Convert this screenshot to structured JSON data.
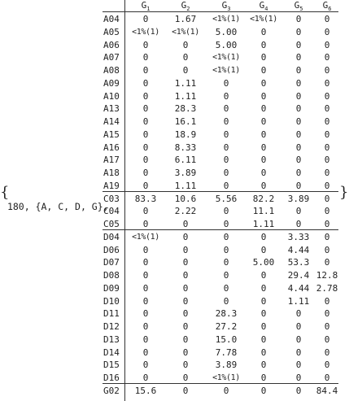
{
  "expression_prefix": "180, {A, C, D, G},",
  "brace_open": "{",
  "brace_close": "}",
  "headers": [
    "G1",
    "G2",
    "G3",
    "G4",
    "G5",
    "G6"
  ],
  "header_base": "G",
  "header_subs": [
    "1",
    "2",
    "3",
    "4",
    "5",
    "6"
  ],
  "groups": [
    {
      "rows": [
        {
          "label": "A04",
          "values": [
            "0",
            "1.67",
            "<1%(1)",
            "<1%(1)",
            "0",
            "0"
          ]
        },
        {
          "label": "A05",
          "values": [
            "<1%(1)",
            "<1%(1)",
            "5.00",
            "0",
            "0",
            "0"
          ]
        },
        {
          "label": "A06",
          "values": [
            "0",
            "0",
            "5.00",
            "0",
            "0",
            "0"
          ]
        },
        {
          "label": "A07",
          "values": [
            "0",
            "0",
            "<1%(1)",
            "0",
            "0",
            "0"
          ]
        },
        {
          "label": "A08",
          "values": [
            "0",
            "0",
            "<1%(1)",
            "0",
            "0",
            "0"
          ]
        },
        {
          "label": "A09",
          "values": [
            "0",
            "1.11",
            "0",
            "0",
            "0",
            "0"
          ]
        },
        {
          "label": "A10",
          "values": [
            "0",
            "1.11",
            "0",
            "0",
            "0",
            "0"
          ]
        },
        {
          "label": "A13",
          "values": [
            "0",
            "28.3",
            "0",
            "0",
            "0",
            "0"
          ]
        },
        {
          "label": "A14",
          "values": [
            "0",
            "16.1",
            "0",
            "0",
            "0",
            "0"
          ]
        },
        {
          "label": "A15",
          "values": [
            "0",
            "18.9",
            "0",
            "0",
            "0",
            "0"
          ]
        },
        {
          "label": "A16",
          "values": [
            "0",
            "8.33",
            "0",
            "0",
            "0",
            "0"
          ]
        },
        {
          "label": "A17",
          "values": [
            "0",
            "6.11",
            "0",
            "0",
            "0",
            "0"
          ]
        },
        {
          "label": "A18",
          "values": [
            "0",
            "3.89",
            "0",
            "0",
            "0",
            "0"
          ]
        },
        {
          "label": "A19",
          "values": [
            "0",
            "1.11",
            "0",
            "0",
            "0",
            "0"
          ]
        }
      ]
    },
    {
      "rows": [
        {
          "label": "C03",
          "values": [
            "83.3",
            "10.6",
            "5.56",
            "82.2",
            "3.89",
            "0"
          ]
        },
        {
          "label": "C04",
          "values": [
            "0",
            "2.22",
            "0",
            "11.1",
            "0",
            "0"
          ]
        },
        {
          "label": "C05",
          "values": [
            "0",
            "0",
            "0",
            "1.11",
            "0",
            "0"
          ]
        }
      ]
    },
    {
      "rows": [
        {
          "label": "D04",
          "values": [
            "<1%(1)",
            "0",
            "0",
            "0",
            "3.33",
            "0"
          ]
        },
        {
          "label": "D06",
          "values": [
            "0",
            "0",
            "0",
            "0",
            "4.44",
            "0"
          ]
        },
        {
          "label": "D07",
          "values": [
            "0",
            "0",
            "0",
            "5.00",
            "53.3",
            "0"
          ]
        },
        {
          "label": "D08",
          "values": [
            "0",
            "0",
            "0",
            "0",
            "29.4",
            "12.8"
          ]
        },
        {
          "label": "D09",
          "values": [
            "0",
            "0",
            "0",
            "0",
            "4.44",
            "2.78"
          ]
        },
        {
          "label": "D10",
          "values": [
            "0",
            "0",
            "0",
            "0",
            "1.11",
            "0"
          ]
        },
        {
          "label": "D11",
          "values": [
            "0",
            "0",
            "28.3",
            "0",
            "0",
            "0"
          ]
        },
        {
          "label": "D12",
          "values": [
            "0",
            "0",
            "27.2",
            "0",
            "0",
            "0"
          ]
        },
        {
          "label": "D13",
          "values": [
            "0",
            "0",
            "15.0",
            "0",
            "0",
            "0"
          ]
        },
        {
          "label": "D14",
          "values": [
            "0",
            "0",
            "7.78",
            "0",
            "0",
            "0"
          ]
        },
        {
          "label": "D15",
          "values": [
            "0",
            "0",
            "3.89",
            "0",
            "0",
            "0"
          ]
        },
        {
          "label": "D16",
          "values": [
            "0",
            "0",
            "<1%(1)",
            "0",
            "0",
            "0"
          ]
        }
      ]
    },
    {
      "rows": [
        {
          "label": "G02",
          "values": [
            "15.6",
            "0",
            "0",
            "0",
            "0",
            "84.4"
          ]
        }
      ]
    }
  ]
}
